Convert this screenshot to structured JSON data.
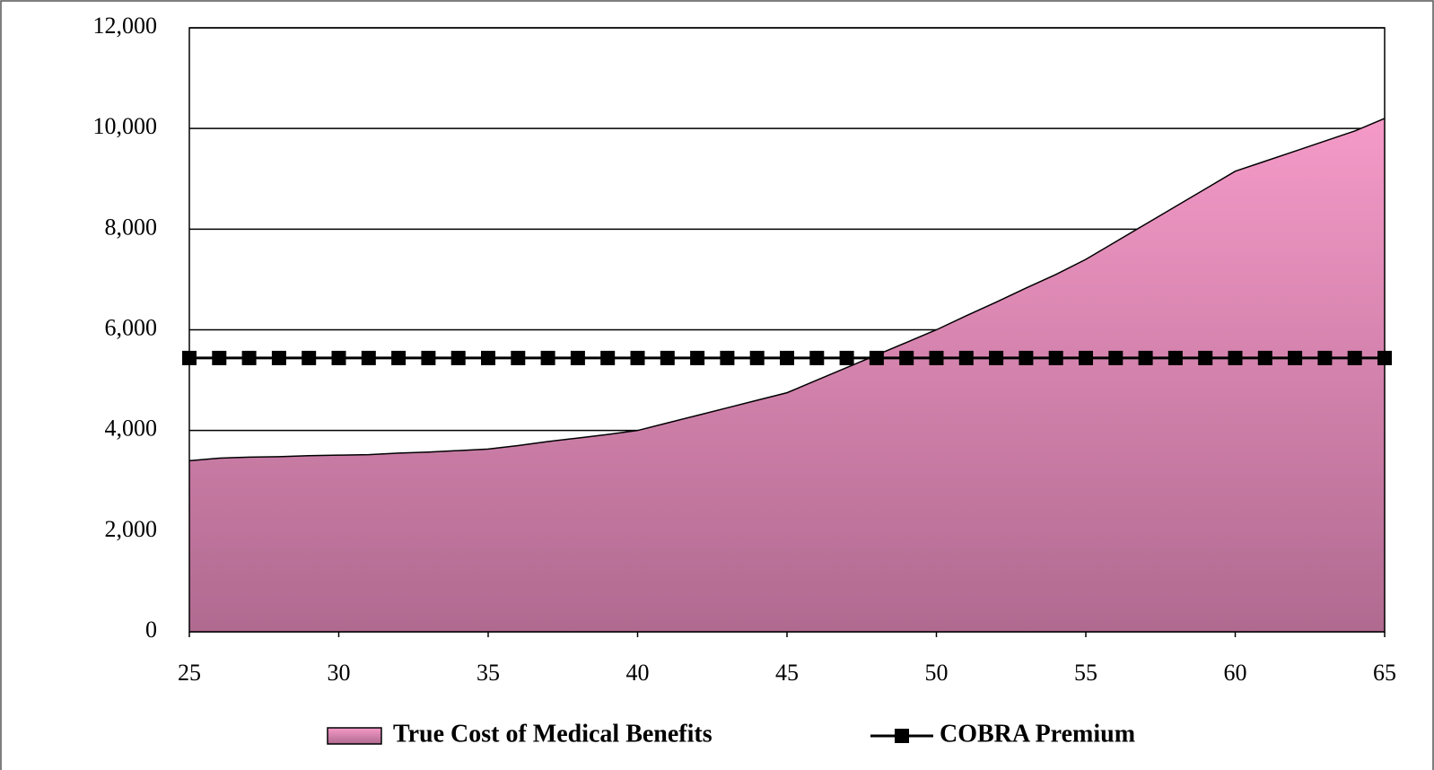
{
  "chart_data": {
    "type": "area_line",
    "x": [
      25,
      26,
      27,
      28,
      29,
      30,
      31,
      32,
      33,
      34,
      35,
      36,
      37,
      38,
      39,
      40,
      41,
      42,
      43,
      44,
      45,
      46,
      47,
      48,
      49,
      50,
      51,
      52,
      53,
      54,
      55,
      56,
      57,
      58,
      59,
      60,
      61,
      62,
      63,
      64,
      65
    ],
    "series": [
      {
        "name": "True Cost of Medical Benefits",
        "color": "#f59ac8",
        "kind": "area",
        "values": [
          3400,
          3450,
          3470,
          3480,
          3500,
          3510,
          3520,
          3550,
          3570,
          3600,
          3630,
          3700,
          3780,
          3850,
          3920,
          4000,
          4150,
          4300,
          4450,
          4600,
          4750,
          5000,
          5250,
          5500,
          5750,
          6000,
          6280,
          6550,
          6830,
          7100,
          7400,
          7750,
          8100,
          8450,
          8800,
          9150,
          9350,
          9550,
          9750,
          9950,
          10200
        ]
      },
      {
        "name": "COBRA Premium",
        "color": "#000000",
        "kind": "line",
        "values": [
          5440,
          5440,
          5440,
          5440,
          5440,
          5440,
          5440,
          5440,
          5440,
          5440,
          5440,
          5440,
          5440,
          5440,
          5440,
          5440,
          5440,
          5440,
          5440,
          5440,
          5440,
          5440,
          5440,
          5440,
          5440,
          5440,
          5440,
          5440,
          5440,
          5440,
          5440,
          5440,
          5440,
          5440,
          5440,
          5440,
          5440,
          5440,
          5440,
          5440,
          5440
        ]
      }
    ],
    "xlim": [
      25,
      65
    ],
    "xticks": [
      25,
      30,
      35,
      40,
      45,
      50,
      55,
      60,
      65
    ],
    "ylim": [
      0,
      12000
    ],
    "yticks": [
      0,
      {
        "value": 2000,
        "label": "2,000"
      },
      {
        "value": 4000,
        "label": "4,000"
      },
      {
        "value": 6000,
        "label": "6,000"
      },
      {
        "value": 8000,
        "label": "8,000"
      },
      {
        "value": 10000,
        "label": "10,000"
      },
      {
        "value": 12000,
        "label": "12,000"
      }
    ],
    "grid": true,
    "legend": "bottom"
  }
}
